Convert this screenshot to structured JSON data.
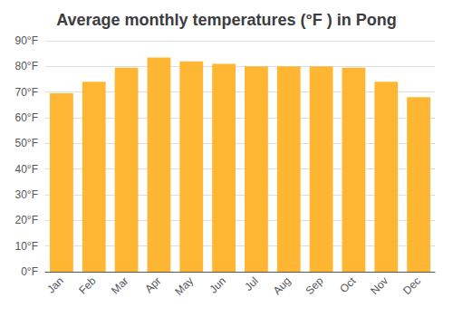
{
  "chart_data": {
    "type": "bar",
    "title": "Average monthly temperatures (°F ) in Pong",
    "categories": [
      "Jan",
      "Feb",
      "Mar",
      "Apr",
      "May",
      "Jun",
      "Jul",
      "Aug",
      "Sep",
      "Oct",
      "Nov",
      "Dec"
    ],
    "values": [
      69.5,
      74,
      79.5,
      83.5,
      82,
      81,
      80,
      80,
      80,
      79.5,
      74,
      68
    ],
    "color": "#FFB733",
    "ylim": [
      0,
      90
    ],
    "yticks": [
      {
        "value": 0,
        "label": "0°F"
      },
      {
        "value": 10,
        "label": "10°F"
      },
      {
        "value": 20,
        "label": "20°F"
      },
      {
        "value": 30,
        "label": "30°F"
      },
      {
        "value": 40,
        "label": "40°F"
      },
      {
        "value": 50,
        "label": "50°F"
      },
      {
        "value": 60,
        "label": "60°F"
      },
      {
        "value": 70,
        "label": "70°F"
      },
      {
        "value": 80,
        "label": "80°F"
      },
      {
        "value": 90,
        "label": "90°F"
      }
    ],
    "grid": true
  }
}
